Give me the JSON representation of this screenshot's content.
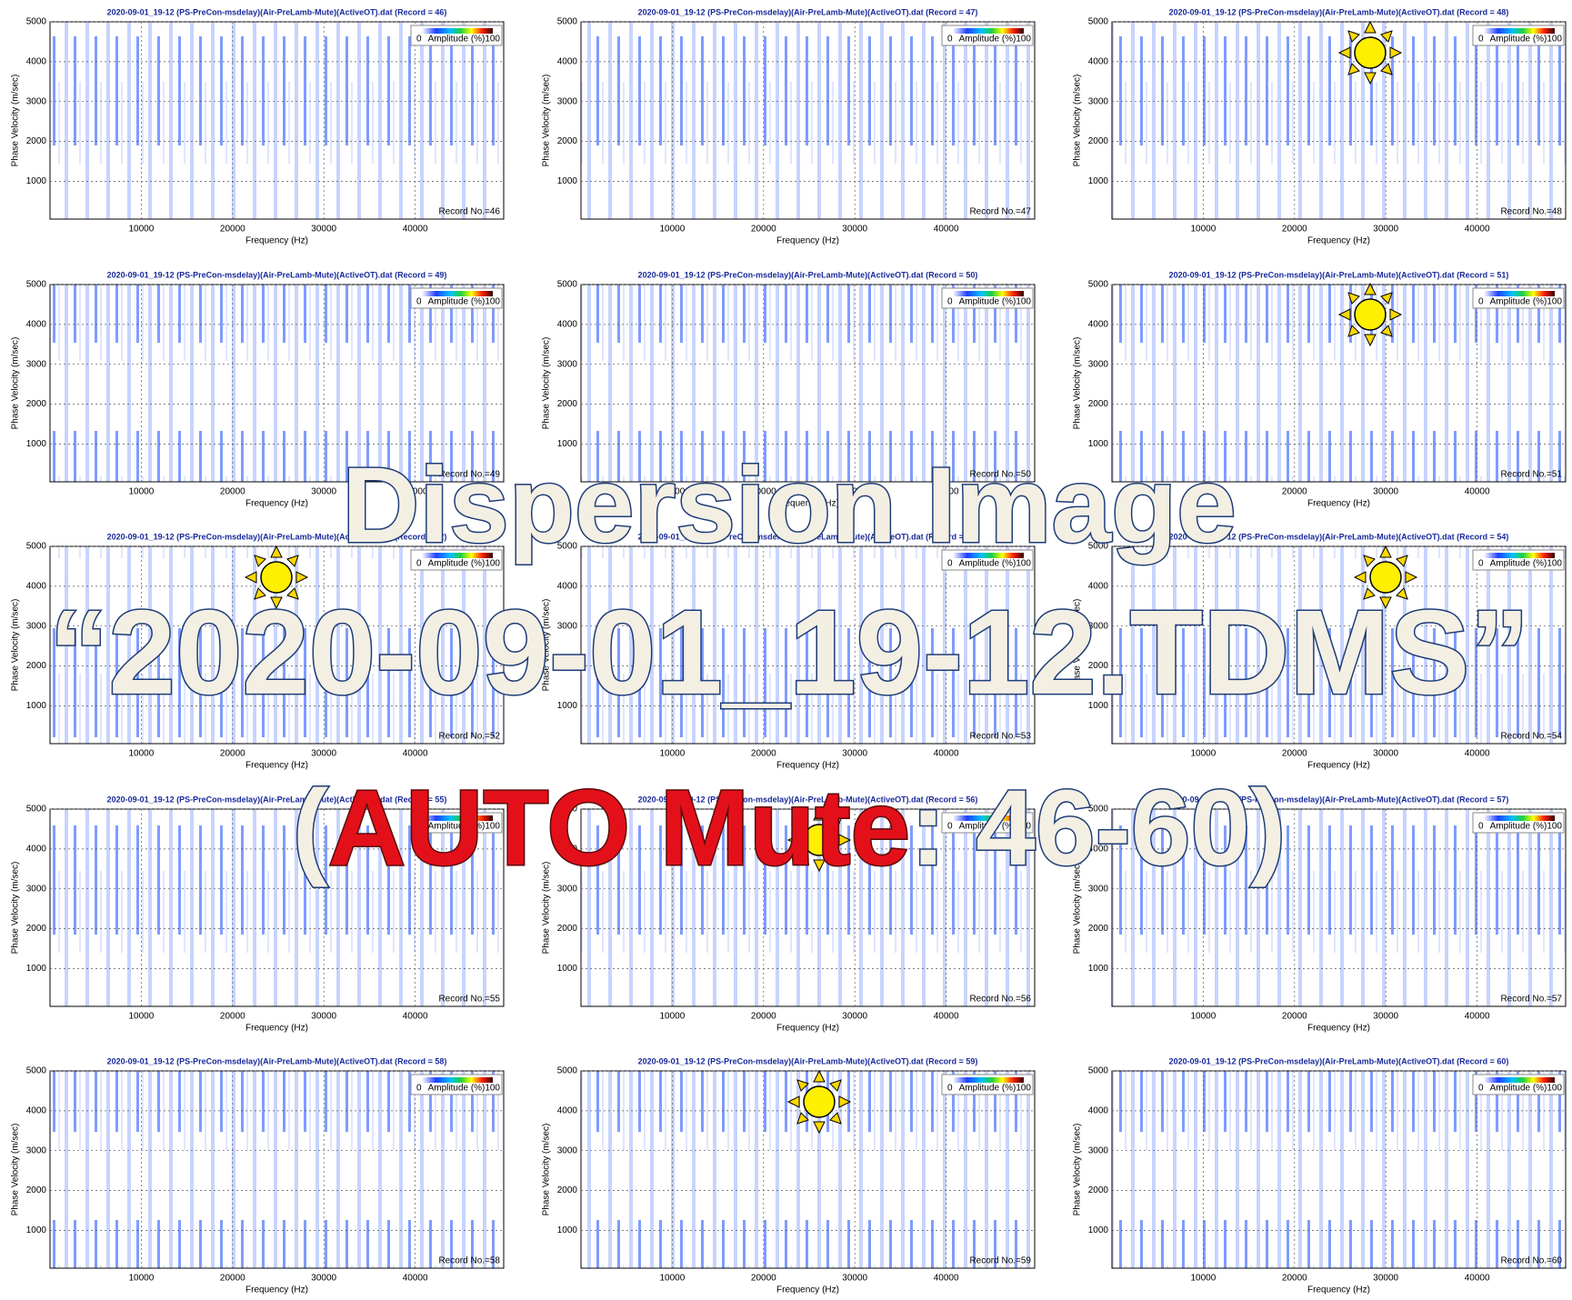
{
  "chart_data": [
    {
      "type": "heatmap",
      "title": "2020-09-01_19-12 (PS-PreCon-msdelay)(Air-PreLamb-Mute)(ActiveOT).dat (Record = 46)",
      "xlabel": "Frequency (Hz)",
      "ylabel": "Phase Velocity (m/sec)",
      "xlim": [
        0,
        49700
      ],
      "ylim": [
        50,
        5000
      ],
      "xticks": [
        10000,
        20000,
        30000,
        40000
      ],
      "yticks": [
        1000,
        2000,
        3000,
        4000,
        5000
      ],
      "colorbar": {
        "min": "0",
        "label": "Amplitude (%)",
        "max": "100"
      },
      "record_label": "Record No.=46"
    },
    {
      "type": "heatmap",
      "title": "2020-09-01_19-12 (PS-PreCon-msdelay)(Air-PreLamb-Mute)(ActiveOT).dat (Record = 47)",
      "xlabel": "Frequency (Hz)",
      "ylabel": "Phase Velocity (m/sec)",
      "xlim": [
        0,
        49700
      ],
      "ylim": [
        50,
        5000
      ],
      "xticks": [
        10000,
        20000,
        30000,
        40000
      ],
      "yticks": [
        1000,
        2000,
        3000,
        4000,
        5000
      ],
      "colorbar": {
        "min": "0",
        "label": "Amplitude (%)",
        "max": "100"
      },
      "record_label": "Record No.=47"
    },
    {
      "type": "heatmap",
      "title": "2020-09-01_19-12 (PS-PreCon-msdelay)(Air-PreLamb-Mute)(ActiveOT).dat (Record = 48)",
      "xlabel": "Frequency (Hz)",
      "ylabel": "Phase Velocity (m/sec)",
      "xlim": [
        0,
        49700
      ],
      "ylim": [
        50,
        5000
      ],
      "xticks": [
        10000,
        20000,
        30000,
        40000
      ],
      "yticks": [
        1000,
        2000,
        3000,
        4000,
        5000
      ],
      "colorbar": {
        "min": "0",
        "label": "Amplitude (%)",
        "max": "100"
      },
      "record_label": "Record No.=48"
    },
    {
      "type": "heatmap",
      "title": "2020-09-01_19-12 (PS-PreCon-msdelay)(Air-PreLamb-Mute)(ActiveOT).dat (Record = 49)",
      "xlabel": "Frequency (Hz)",
      "ylabel": "Phase Velocity (m/sec)",
      "xlim": [
        0,
        49700
      ],
      "ylim": [
        50,
        5000
      ],
      "xticks": [
        10000,
        20000,
        30000,
        40000
      ],
      "yticks": [
        1000,
        2000,
        3000,
        4000,
        5000
      ],
      "colorbar": {
        "min": "0",
        "label": "Amplitude (%)",
        "max": "100"
      },
      "record_label": "Record No.=49"
    },
    {
      "type": "heatmap",
      "title": "2020-09-01_19-12 (PS-PreCon-msdelay)(Air-PreLamb-Mute)(ActiveOT).dat (Record = 50)",
      "xlabel": "Frequency (Hz)",
      "ylabel": "Phase Velocity (m/sec)",
      "xlim": [
        0,
        49700
      ],
      "ylim": [
        50,
        5000
      ],
      "xticks": [
        10000,
        20000,
        30000,
        40000
      ],
      "yticks": [
        1000,
        2000,
        3000,
        4000,
        5000
      ],
      "colorbar": {
        "min": "0",
        "label": "Amplitude (%)",
        "max": "100"
      },
      "record_label": "Record No.=50"
    },
    {
      "type": "heatmap",
      "title": "2020-09-01_19-12 (PS-PreCon-msdelay)(Air-PreLamb-Mute)(ActiveOT).dat (Record = 51)",
      "xlabel": "Frequency (Hz)",
      "ylabel": "Phase Velocity (m/sec)",
      "xlim": [
        0,
        49700
      ],
      "ylim": [
        50,
        5000
      ],
      "xticks": [
        10000,
        20000,
        30000,
        40000
      ],
      "yticks": [
        1000,
        2000,
        3000,
        4000,
        5000
      ],
      "colorbar": {
        "min": "0",
        "label": "Amplitude (%)",
        "max": "100"
      },
      "record_label": "Record No.=51"
    },
    {
      "type": "heatmap",
      "title": "2020-09-01_19-12 (PS-PreCon-msdelay)(Air-PreLamb-Mute)(ActiveOT).dat (Record = 52)",
      "xlabel": "Frequency (Hz)",
      "ylabel": "Phase Velocity (m/sec)",
      "xlim": [
        0,
        49700
      ],
      "ylim": [
        50,
        5000
      ],
      "xticks": [
        10000,
        20000,
        30000,
        40000
      ],
      "yticks": [
        1000,
        2000,
        3000,
        4000,
        5000
      ],
      "colorbar": {
        "min": "0",
        "label": "Amplitude (%)",
        "max": "100"
      },
      "record_label": "Record No.=52"
    },
    {
      "type": "heatmap",
      "title": "2020-09-01_19-12 (PS-PreCon-msdelay)(Air-PreLamb-Mute)(ActiveOT).dat (Record = 53)",
      "xlabel": "Frequency (Hz)",
      "ylabel": "Phase Velocity (m/sec)",
      "xlim": [
        0,
        49700
      ],
      "ylim": [
        50,
        5000
      ],
      "xticks": [
        10000,
        20000,
        30000,
        40000
      ],
      "yticks": [
        1000,
        2000,
        3000,
        4000,
        5000
      ],
      "colorbar": {
        "min": "0",
        "label": "Amplitude (%)",
        "max": "100"
      },
      "record_label": "Record No.=53"
    },
    {
      "type": "heatmap",
      "title": "2020-09-01_19-12 (PS-PreCon-msdelay)(Air-PreLamb-Mute)(ActiveOT).dat (Record = 54)",
      "xlabel": "Frequency (Hz)",
      "ylabel": "Phase Velocity (m/sec)",
      "xlim": [
        0,
        49700
      ],
      "ylim": [
        50,
        5000
      ],
      "xticks": [
        10000,
        20000,
        30000,
        40000
      ],
      "yticks": [
        1000,
        2000,
        3000,
        4000,
        5000
      ],
      "colorbar": {
        "min": "0",
        "label": "Amplitude (%)",
        "max": "100"
      },
      "record_label": "Record No.=54"
    },
    {
      "type": "heatmap",
      "title": "2020-09-01_19-12 (PS-PreCon-msdelay)(Air-PreLamb-Mute)(ActiveOT).dat (Record = 55)",
      "xlabel": "Frequency (Hz)",
      "ylabel": "Phase Velocity (m/sec)",
      "xlim": [
        0,
        49700
      ],
      "ylim": [
        50,
        5000
      ],
      "xticks": [
        10000,
        20000,
        30000,
        40000
      ],
      "yticks": [
        1000,
        2000,
        3000,
        4000,
        5000
      ],
      "colorbar": {
        "min": "0",
        "label": "Amplitude (%)",
        "max": "100"
      },
      "record_label": "Record No.=55"
    },
    {
      "type": "heatmap",
      "title": "2020-09-01_19-12 (PS-PreCon-msdelay)(Air-PreLamb-Mute)(ActiveOT).dat (Record = 56)",
      "xlabel": "Frequency (Hz)",
      "ylabel": "Phase Velocity (m/sec)",
      "xlim": [
        0,
        49700
      ],
      "ylim": [
        50,
        5000
      ],
      "xticks": [
        10000,
        20000,
        30000,
        40000
      ],
      "yticks": [
        1000,
        2000,
        3000,
        4000,
        5000
      ],
      "colorbar": {
        "min": "0",
        "label": "Amplitude (%)",
        "max": "100"
      },
      "record_label": "Record No.=56"
    },
    {
      "type": "heatmap",
      "title": "2020-09-01_19-12 (PS-PreCon-msdelay)(Air-PreLamb-Mute)(ActiveOT).dat (Record = 57)",
      "xlabel": "Frequency (Hz)",
      "ylabel": "Phase Velocity (m/sec)",
      "xlim": [
        0,
        49700
      ],
      "ylim": [
        50,
        5000
      ],
      "xticks": [
        10000,
        20000,
        30000,
        40000
      ],
      "yticks": [
        1000,
        2000,
        3000,
        4000,
        5000
      ],
      "colorbar": {
        "min": "0",
        "label": "Amplitude (%)",
        "max": "100"
      },
      "record_label": "Record No.=57"
    },
    {
      "type": "heatmap",
      "title": "2020-09-01_19-12 (PS-PreCon-msdelay)(Air-PreLamb-Mute)(ActiveOT).dat (Record = 58)",
      "xlabel": "Frequency (Hz)",
      "ylabel": "Phase Velocity (m/sec)",
      "xlim": [
        0,
        49700
      ],
      "ylim": [
        50,
        5000
      ],
      "xticks": [
        10000,
        20000,
        30000,
        40000
      ],
      "yticks": [
        1000,
        2000,
        3000,
        4000,
        5000
      ],
      "colorbar": {
        "min": "0",
        "label": "Amplitude (%)",
        "max": "100"
      },
      "record_label": "Record No.=58"
    },
    {
      "type": "heatmap",
      "title": "2020-09-01_19-12 (PS-PreCon-msdelay)(Air-PreLamb-Mute)(ActiveOT).dat (Record = 59)",
      "xlabel": "Frequency (Hz)",
      "ylabel": "Phase Velocity (m/sec)",
      "xlim": [
        0,
        49700
      ],
      "ylim": [
        50,
        5000
      ],
      "xticks": [
        10000,
        20000,
        30000,
        40000
      ],
      "yticks": [
        1000,
        2000,
        3000,
        4000,
        5000
      ],
      "colorbar": {
        "min": "0",
        "label": "Amplitude (%)",
        "max": "100"
      },
      "record_label": "Record No.=59"
    },
    {
      "type": "heatmap",
      "title": "2020-09-01_19-12 (PS-PreCon-msdelay)(Air-PreLamb-Mute)(ActiveOT).dat (Record = 60)",
      "xlabel": "Frequency (Hz)",
      "ylabel": "Phase Velocity (m/sec)",
      "xlim": [
        0,
        49700
      ],
      "ylim": [
        50,
        5000
      ],
      "xticks": [
        10000,
        20000,
        30000,
        40000
      ],
      "yticks": [
        1000,
        2000,
        3000,
        4000,
        5000
      ],
      "colorbar": {
        "min": "0",
        "label": "Amplitude (%)",
        "max": "100"
      },
      "record_label": "Record No.=60"
    }
  ],
  "overlay": {
    "line1": "Dispersion Image",
    "line2": "“2020-09-01_19-12.TDMS”",
    "line3": {
      "open": "(",
      "highlight": "AUTO Mute",
      "rest": ": 46-60)"
    }
  }
}
